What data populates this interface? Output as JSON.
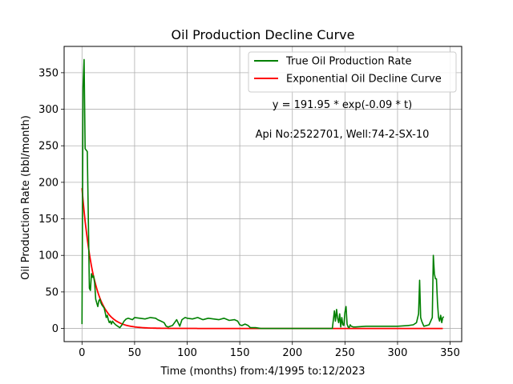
{
  "chart_data": {
    "type": "line",
    "title": "Oil Production Decline Curve",
    "xlabel": "Time (months) from:4/1995 to:12/2023",
    "ylabel": "Oil Production Rate (bbl/month)",
    "xlim": [
      -17,
      361
    ],
    "ylim": [
      -18,
      386
    ],
    "xticks": [
      0,
      50,
      100,
      150,
      200,
      250,
      300,
      350
    ],
    "yticks": [
      0,
      50,
      100,
      150,
      200,
      250,
      300,
      350
    ],
    "grid": true,
    "legend_position": "top-right",
    "annotations": [
      "y = 191.95 * exp(-0.09 * t)",
      "Api No:2522701, Well:74-2-SX-10"
    ],
    "series": [
      {
        "name": "True Oil Production Rate",
        "color": "#008000",
        "x": [
          0,
          1,
          2,
          3,
          4,
          5,
          6,
          7,
          8,
          9,
          10,
          11,
          12,
          13,
          14,
          15,
          16,
          17,
          18,
          19,
          20,
          21,
          22,
          23,
          24,
          25,
          26,
          27,
          28,
          29,
          30,
          32,
          34,
          36,
          38,
          40,
          42,
          44,
          46,
          48,
          50,
          55,
          60,
          65,
          70,
          72,
          75,
          78,
          80,
          82,
          84,
          86,
          88,
          90,
          93,
          95,
          98,
          100,
          105,
          110,
          115,
          120,
          125,
          130,
          135,
          140,
          145,
          148,
          150,
          152,
          155,
          158,
          160,
          165,
          170,
          180,
          200,
          220,
          238,
          240,
          241,
          242,
          243,
          244,
          245,
          246,
          247,
          248,
          249,
          250,
          251,
          252,
          253,
          254,
          255,
          256,
          258,
          260,
          270,
          280,
          290,
          300,
          310,
          315,
          318,
          320,
          321,
          322,
          323,
          325,
          330,
          333,
          334,
          335,
          336,
          337,
          338,
          339,
          340,
          341,
          342,
          343,
          344
        ],
        "values": [
          6,
          330,
          368,
          246,
          244,
          242,
          150,
          55,
          52,
          75,
          70,
          72,
          62,
          40,
          35,
          30,
          38,
          40,
          35,
          32,
          30,
          28,
          22,
          15,
          18,
          12,
          8,
          10,
          6,
          10,
          8,
          5,
          3,
          1,
          5,
          10,
          13,
          14,
          13,
          12,
          15,
          14,
          13,
          15,
          14,
          12,
          10,
          8,
          3,
          2,
          3,
          4,
          8,
          12,
          3,
          12,
          15,
          14,
          13,
          15,
          12,
          14,
          13,
          12,
          14,
          11,
          12,
          10,
          5,
          4,
          6,
          4,
          1,
          1,
          0,
          0,
          0,
          0,
          0,
          24,
          10,
          26,
          14,
          8,
          20,
          2,
          15,
          5,
          4,
          22,
          30,
          6,
          2,
          1,
          5,
          3,
          2,
          2,
          3,
          3,
          3,
          3,
          4,
          5,
          8,
          20,
          66,
          15,
          10,
          3,
          5,
          15,
          100,
          75,
          68,
          68,
          35,
          15,
          10,
          18,
          8,
          15,
          16
        ]
      },
      {
        "name": "Exponential Oil Decline Curve",
        "color": "#ff0000",
        "fit": {
          "a": 191.95,
          "b": 0.09
        },
        "x_range": [
          0,
          343
        ]
      }
    ]
  }
}
